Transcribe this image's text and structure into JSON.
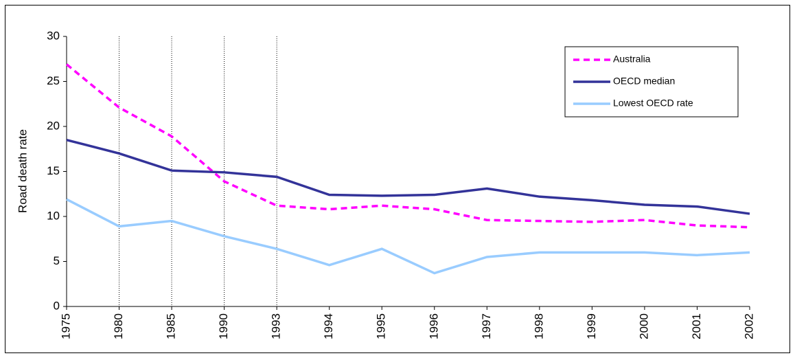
{
  "chart_data": {
    "type": "line",
    "y_label": "Road death rate",
    "categories": [
      "1975",
      "1980",
      "1985",
      "1990",
      "1993",
      "1994",
      "1995",
      "1996",
      "1997",
      "1998",
      "1999",
      "2000",
      "2001",
      "2002"
    ],
    "series": [
      {
        "name": "Australia",
        "color": "#ff00ff",
        "line_style": "dashed",
        "values": [
          26.9,
          22.1,
          18.9,
          13.9,
          11.2,
          10.8,
          11.2,
          10.8,
          9.6,
          9.5,
          9.4,
          9.6,
          9.0,
          8.8
        ]
      },
      {
        "name": "OECD median",
        "color": "#333399",
        "line_style": "solid",
        "values": [
          18.5,
          17.0,
          15.1,
          14.9,
          14.4,
          12.4,
          12.3,
          12.4,
          13.1,
          12.2,
          11.8,
          11.3,
          11.1,
          10.3
        ]
      },
      {
        "name": "Lowest OECD rate",
        "color": "#99ccff",
        "line_style": "solid",
        "values": [
          11.9,
          8.9,
          9.5,
          7.8,
          6.4,
          4.6,
          6.4,
          3.7,
          5.5,
          6.0,
          6.0,
          6.0,
          5.7,
          6.0
        ]
      }
    ],
    "ylim": [
      0,
      30
    ],
    "yticks": [
      0,
      5,
      10,
      15,
      20,
      25,
      30
    ],
    "vertical_lines_at": [
      "1980",
      "1985",
      "1990",
      "1993"
    ],
    "legend": "upper right"
  }
}
